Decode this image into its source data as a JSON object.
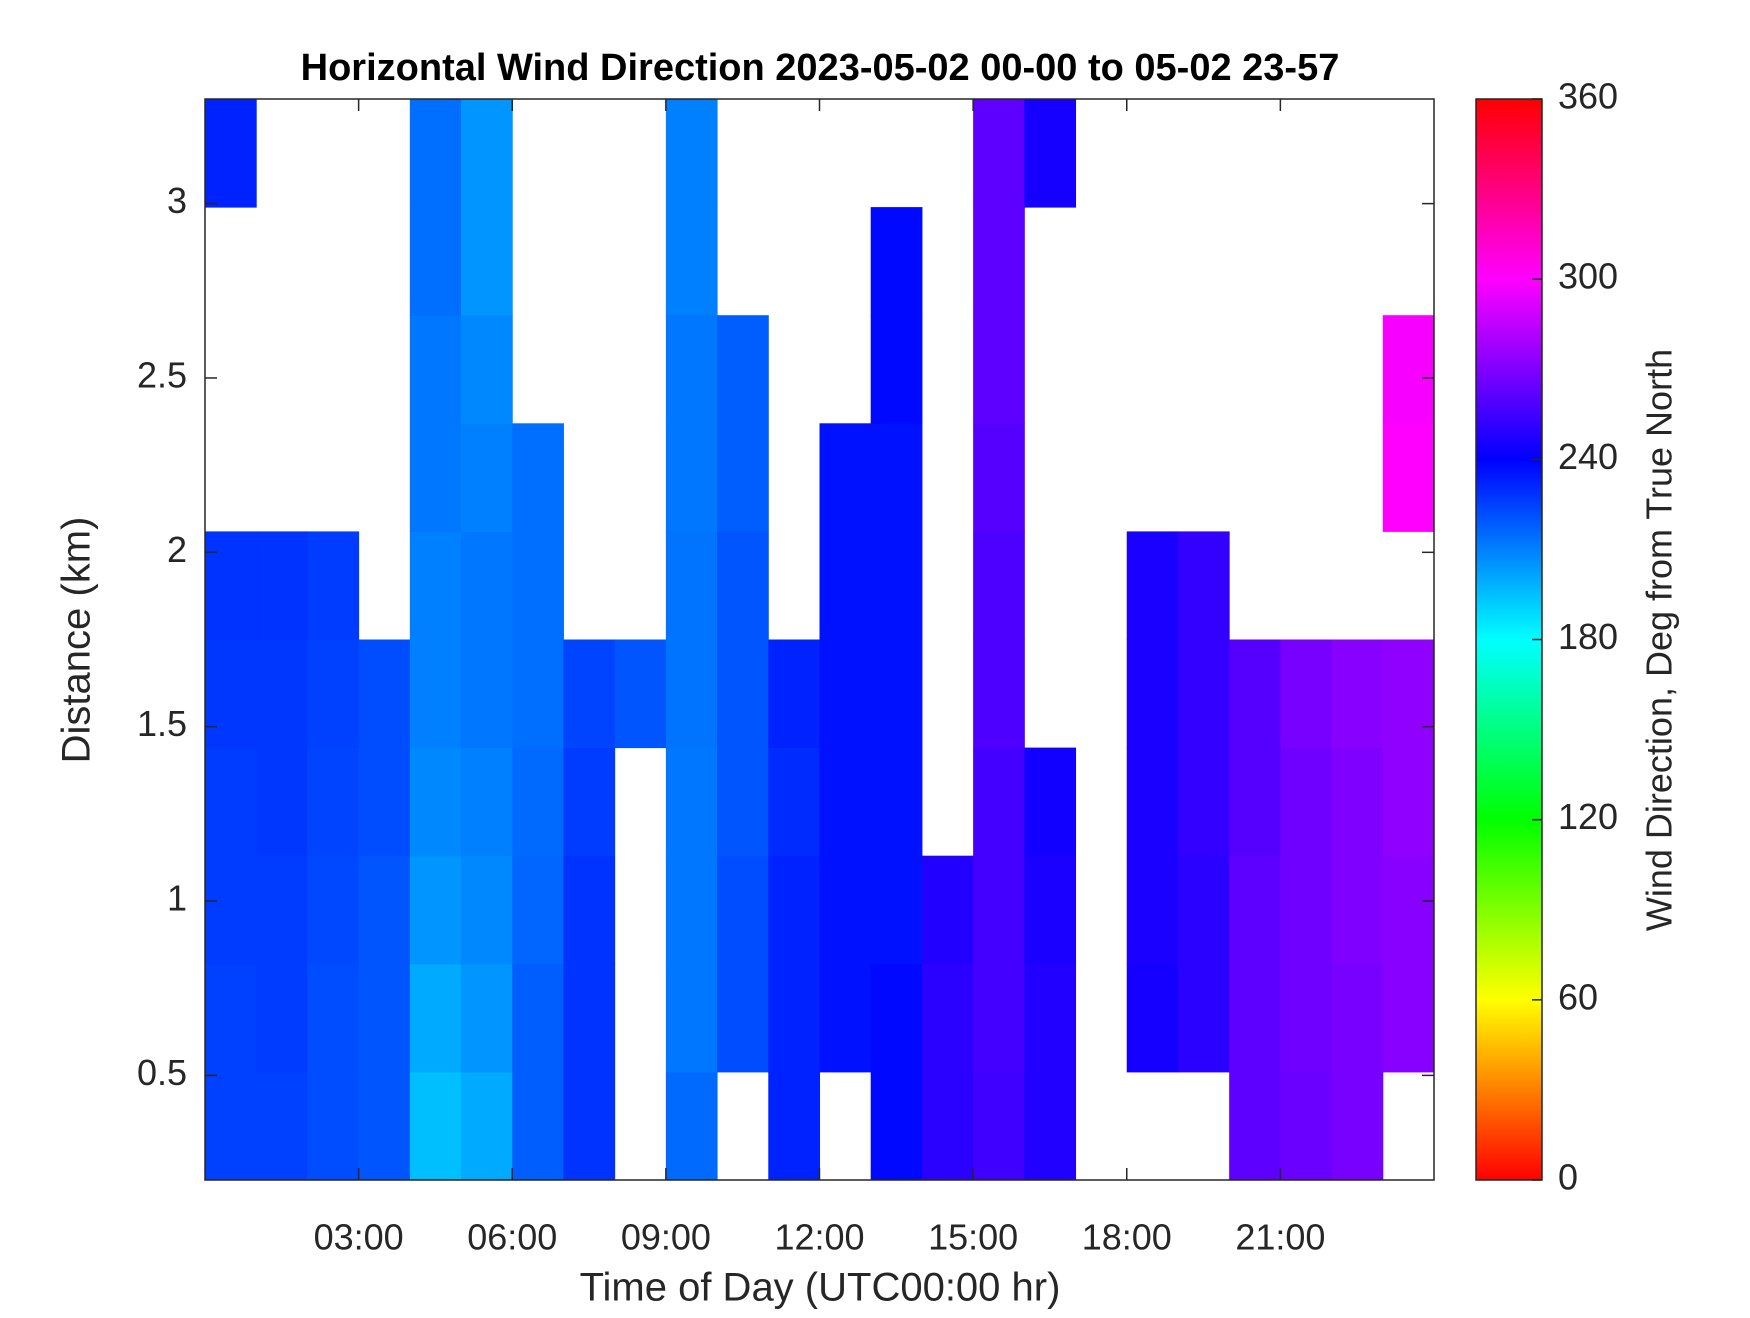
{
  "chart_data": {
    "type": "heatmap",
    "title": "Horizontal Wind Direction 2023-05-02 00-00 to 05-02 23-57",
    "x_label": "Time of Day (UTC00:00 hr)",
    "y_label": "Distance (km)",
    "colorbar_label": "Wind Direction, Deg from True North",
    "colormap": "hsv",
    "xbins": [
      0,
      1,
      2,
      3,
      4,
      5,
      6,
      7,
      8,
      9,
      10,
      11,
      12,
      13,
      14,
      15,
      16,
      17,
      18,
      19,
      20,
      21,
      22,
      23,
      24
    ],
    "ybins": [
      0.2,
      0.51,
      0.82,
      1.13,
      1.44,
      1.75,
      2.06,
      2.37,
      2.68,
      2.99,
      3.3
    ],
    "z": [
      [
        225,
        225,
        222,
        220,
        195,
        200,
        218,
        228,
        null,
        215,
        null,
        232,
        null,
        238,
        250,
        255,
        248,
        null,
        null,
        null,
        262,
        265,
        268,
        null
      ],
      [
        225,
        226,
        222,
        220,
        200,
        205,
        218,
        228,
        null,
        212,
        222,
        232,
        236,
        238,
        250,
        256,
        248,
        null,
        245,
        250,
        262,
        266,
        268,
        272
      ],
      [
        226,
        226,
        223,
        220,
        205,
        208,
        216,
        228,
        null,
        212,
        222,
        232,
        236,
        236,
        248,
        256,
        246,
        null,
        246,
        250,
        262,
        266,
        270,
        272
      ],
      [
        226,
        227,
        224,
        222,
        208,
        210,
        215,
        226,
        null,
        212,
        220,
        230,
        236,
        236,
        null,
        256,
        244,
        null,
        246,
        252,
        260,
        266,
        270,
        274
      ],
      [
        227,
        227,
        225,
        222,
        210,
        212,
        214,
        224,
        220,
        213,
        220,
        232,
        236,
        236,
        null,
        258,
        null,
        null,
        246,
        252,
        260,
        268,
        272,
        274
      ],
      [
        228,
        228,
        226,
        null,
        210,
        212,
        214,
        null,
        null,
        213,
        220,
        null,
        236,
        236,
        null,
        258,
        null,
        null,
        246,
        252,
        null,
        null,
        null,
        null
      ],
      [
        null,
        null,
        null,
        null,
        212,
        210,
        214,
        null,
        null,
        212,
        218,
        null,
        236,
        236,
        null,
        260,
        null,
        null,
        null,
        null,
        null,
        null,
        null,
        300
      ],
      [
        null,
        null,
        null,
        null,
        212,
        208,
        null,
        null,
        null,
        212,
        218,
        null,
        null,
        238,
        null,
        262,
        null,
        null,
        null,
        null,
        null,
        null,
        null,
        298
      ],
      [
        null,
        null,
        null,
        null,
        214,
        205,
        null,
        null,
        null,
        210,
        null,
        null,
        null,
        238,
        null,
        262,
        null,
        null,
        null,
        null,
        null,
        null,
        null,
        null
      ],
      [
        232,
        null,
        null,
        null,
        214,
        205,
        null,
        null,
        null,
        210,
        null,
        null,
        null,
        null,
        null,
        262,
        245,
        null,
        null,
        null,
        null,
        null,
        null,
        null
      ]
    ],
    "xlim": [
      0,
      24
    ],
    "xticks": [
      {
        "value": 3,
        "label": "03:00"
      },
      {
        "value": 6,
        "label": "06:00"
      },
      {
        "value": 9,
        "label": "09:00"
      },
      {
        "value": 12,
        "label": "12:00"
      },
      {
        "value": 15,
        "label": "15:00"
      },
      {
        "value": 18,
        "label": "18:00"
      },
      {
        "value": 21,
        "label": "21:00"
      }
    ],
    "ylim": [
      0.2,
      3.3
    ],
    "yticks": [
      0.5,
      1,
      1.5,
      2,
      2.5,
      3
    ],
    "clim": [
      0,
      360
    ],
    "cticks": [
      0,
      60,
      120,
      180,
      240,
      300,
      360
    ]
  }
}
